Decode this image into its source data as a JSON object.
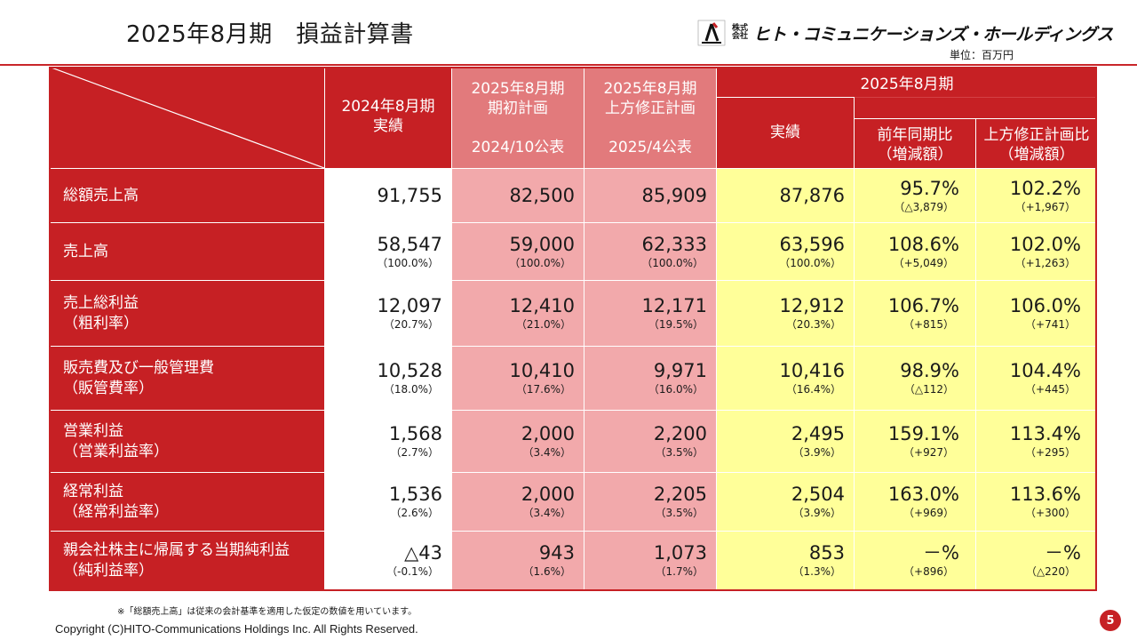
{
  "page": {
    "title": "2025年8月期　損益計算書",
    "unit": "単位：百万円",
    "footnote": "※「総額売上高」は従来の会計基準を適用した仮定の数値を用いています。",
    "copyright": "Copyright (C)HITO-Communications Holdings Inc. All Rights Reserved.",
    "page_number": "5"
  },
  "logo": {
    "kabu": "株式",
    "kaisha": "会社",
    "name": "ヒト・コミュニケーションズ・ホールディングス"
  },
  "colors": {
    "header_red": "#c62024",
    "plan_pink": "#f2a9ab",
    "actual_yellow": "#ffff99"
  },
  "table": {
    "headers": {
      "prev": [
        "2024年8月期",
        "実績"
      ],
      "plan_initial": [
        "2025年8月期",
        "期初計画",
        "2024/10公表"
      ],
      "plan_revised": [
        "2025年8月期",
        "上方修正計画",
        "2025/4公表"
      ],
      "group": "2025年8月期",
      "actual": "実績",
      "yoy": [
        "前年同期比",
        "（増減額）"
      ],
      "vs_revised": [
        "上方修正計画比",
        "（増減額）"
      ]
    },
    "rows": [
      {
        "label": [
          "総額売上高"
        ],
        "prev": [
          "91,755",
          ""
        ],
        "plan1": [
          "82,500",
          ""
        ],
        "plan2": [
          "85,909",
          ""
        ],
        "actual": [
          "87,876",
          ""
        ],
        "yoy": [
          "95.7%",
          "（△3,879）"
        ],
        "vsrev": [
          "102.2%",
          "（+1,967）"
        ]
      },
      {
        "label": [
          "売上高"
        ],
        "prev": [
          "58,547",
          "（100.0%）"
        ],
        "plan1": [
          "59,000",
          "（100.0%）"
        ],
        "plan2": [
          "62,333",
          "（100.0%）"
        ],
        "actual": [
          "63,596",
          "（100.0%）"
        ],
        "yoy": [
          "108.6%",
          "（+5,049）"
        ],
        "vsrev": [
          "102.0%",
          "（+1,263）"
        ]
      },
      {
        "label": [
          "売上総利益",
          "（粗利率）"
        ],
        "prev": [
          "12,097",
          "（20.7%）"
        ],
        "plan1": [
          "12,410",
          "（21.0%）"
        ],
        "plan2": [
          "12,171",
          "（19.5%）"
        ],
        "actual": [
          "12,912",
          "（20.3%）"
        ],
        "yoy": [
          "106.7%",
          "（+815）"
        ],
        "vsrev": [
          "106.0%",
          "（+741）"
        ]
      },
      {
        "label": [
          "販売費及び一般管理費",
          "（販管費率）"
        ],
        "prev": [
          "10,528",
          "（18.0%）"
        ],
        "plan1": [
          "10,410",
          "（17.6%）"
        ],
        "plan2": [
          "9,971",
          "（16.0%）"
        ],
        "actual": [
          "10,416",
          "（16.4%）"
        ],
        "yoy": [
          "98.9%",
          "（△112）"
        ],
        "vsrev": [
          "104.4%",
          "（+445）"
        ]
      },
      {
        "label": [
          "営業利益",
          "（営業利益率）"
        ],
        "prev": [
          "1,568",
          "（2.7%）"
        ],
        "plan1": [
          "2,000",
          "（3.4%）"
        ],
        "plan2": [
          "2,200",
          "（3.5%）"
        ],
        "actual": [
          "2,495",
          "（3.9%）"
        ],
        "yoy": [
          "159.1%",
          "（+927）"
        ],
        "vsrev": [
          "113.4%",
          "（+295）"
        ]
      },
      {
        "label": [
          "経常利益",
          "（経常利益率）"
        ],
        "prev": [
          "1,536",
          "（2.6%）"
        ],
        "plan1": [
          "2,000",
          "（3.4%）"
        ],
        "plan2": [
          "2,205",
          "（3.5%）"
        ],
        "actual": [
          "2,504",
          "（3.9%）"
        ],
        "yoy": [
          "163.0%",
          "（+969）"
        ],
        "vsrev": [
          "113.6%",
          "（+300）"
        ]
      },
      {
        "label": [
          "親会社株主に帰属する当期純利益",
          "（純利益率）"
        ],
        "prev": [
          "△43",
          "（-0.1%）"
        ],
        "plan1": [
          "943",
          "（1.6%）"
        ],
        "plan2": [
          "1,073",
          "（1.7%）"
        ],
        "actual": [
          "853",
          "（1.3%）"
        ],
        "yoy": [
          "－%",
          "（+896）"
        ],
        "vsrev": [
          "－%",
          "（△220）"
        ]
      }
    ]
  }
}
